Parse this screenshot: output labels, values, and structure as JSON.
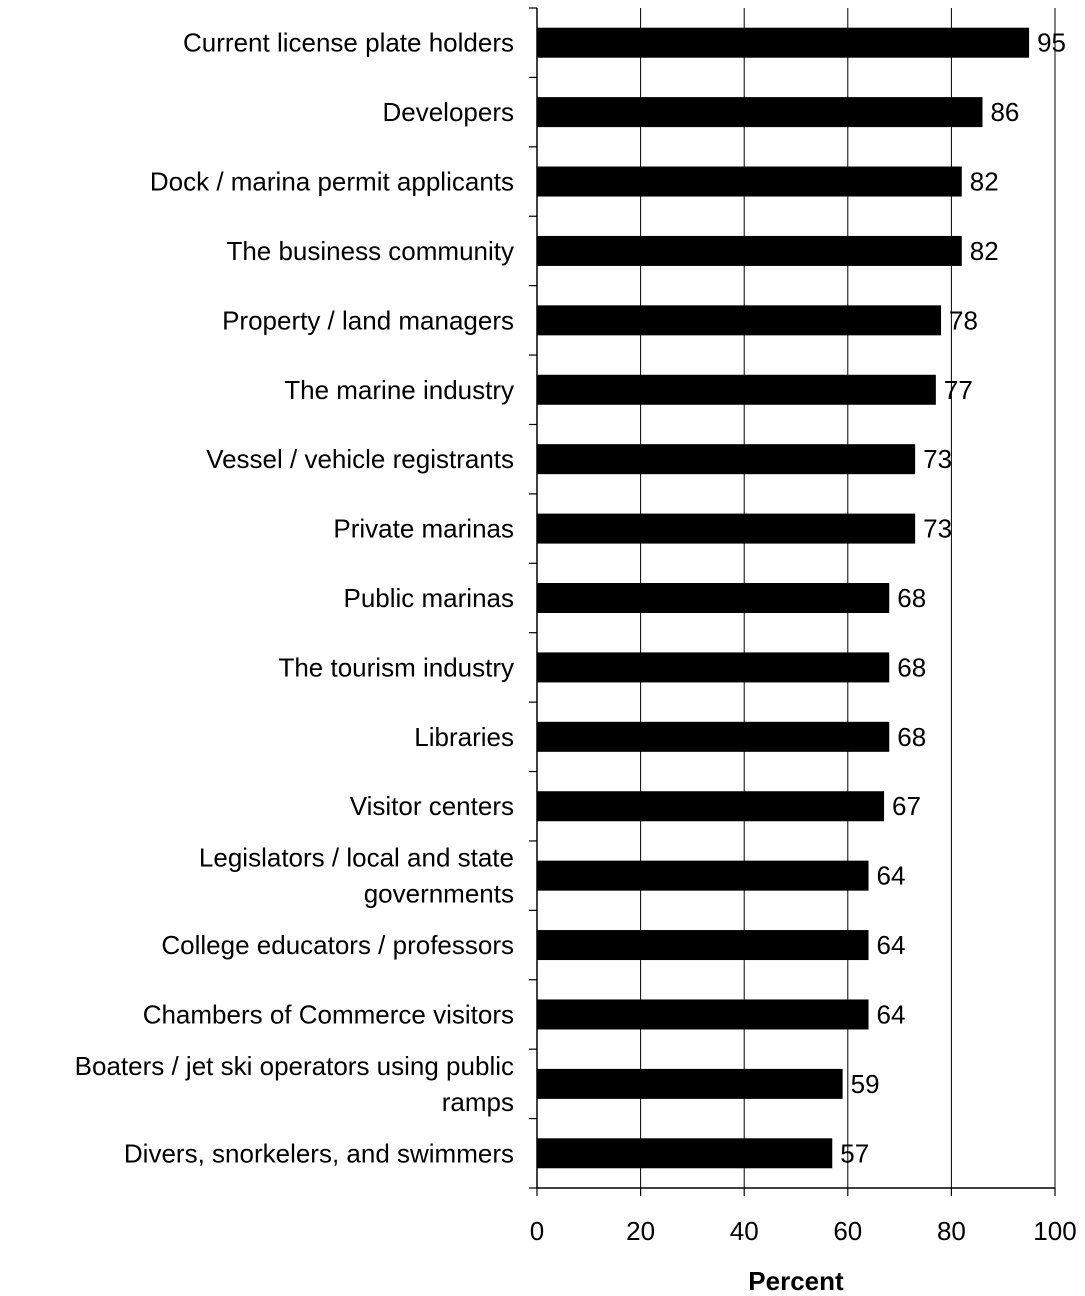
{
  "chart_data": {
    "type": "bar",
    "orientation": "horizontal",
    "categories": [
      [
        "Current license plate holders"
      ],
      [
        "Developers"
      ],
      [
        "Dock / marina permit applicants"
      ],
      [
        "The business community"
      ],
      [
        "Property / land managers"
      ],
      [
        "The marine industry"
      ],
      [
        "Vessel / vehicle registrants"
      ],
      [
        "Private marinas"
      ],
      [
        "Public marinas"
      ],
      [
        "The tourism industry"
      ],
      [
        "Libraries"
      ],
      [
        "Visitor centers"
      ],
      [
        "Legislators / local and state",
        "governments"
      ],
      [
        "College educators / professors"
      ],
      [
        "Chambers of Commerce visitors"
      ],
      [
        "Boaters / jet ski operators using public",
        "ramps"
      ],
      [
        "Divers, snorkelers, and swimmers"
      ]
    ],
    "values": [
      95,
      86,
      82,
      82,
      78,
      77,
      73,
      73,
      68,
      68,
      68,
      67,
      64,
      64,
      64,
      59,
      57
    ],
    "data_labels": [
      "95",
      "86",
      "82",
      "82",
      "78",
      "77",
      "73",
      "73",
      "68",
      "68",
      "68",
      "67",
      "64",
      "64",
      "64",
      "59",
      "57"
    ],
    "xticks": [
      "0",
      "20",
      "40",
      "60",
      "80",
      "100"
    ],
    "xlim": [
      0,
      100
    ],
    "xlabel": "Percent",
    "grid": "vertical",
    "bar_color": "#000000",
    "gridline_color": "#000000"
  }
}
